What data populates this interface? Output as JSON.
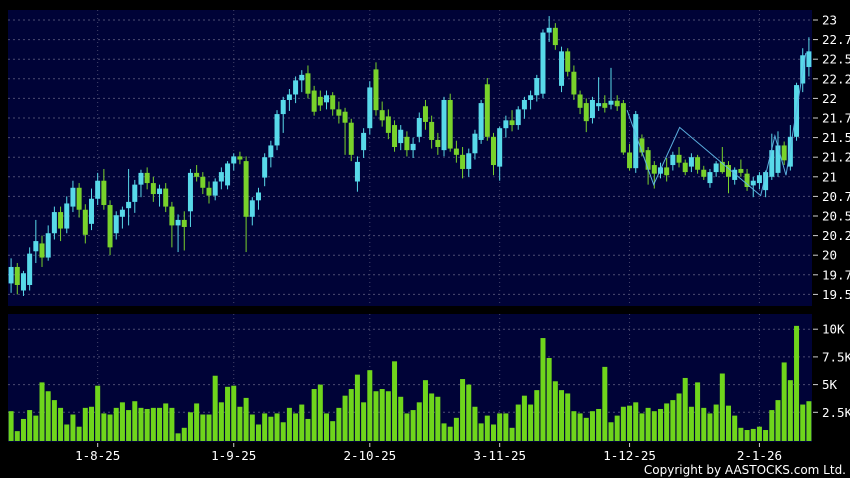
{
  "chart_data": {
    "type": "candlestick_with_volume",
    "title": "",
    "price_axis": {
      "min": 19.5,
      "max": 23,
      "tick_step": 0.25,
      "tick_labels": [
        "23",
        "22.75",
        "22.5",
        "22.25",
        "22",
        "21.75",
        "21.5",
        "21.25",
        "21",
        "20.75",
        "20.5",
        "20.25",
        "20",
        "19.75",
        "19.5"
      ]
    },
    "volume_axis": {
      "unit": "K",
      "tick_labels": [
        "10K",
        "7.5K",
        "5K",
        "2.5K"
      ],
      "tick_values_k": [
        10,
        7.5,
        5,
        2.5
      ]
    },
    "x_axis": {
      "tick_labels": [
        "1-8-25",
        "1-9-25",
        "2-10-25",
        "3-11-25",
        "1-12-25",
        "2-1-26"
      ],
      "tick_indices": [
        14,
        36,
        58,
        79,
        100,
        121
      ]
    },
    "candles_ohlc": [
      [
        19.64,
        19.96,
        19.52,
        19.85
      ],
      [
        19.85,
        19.9,
        19.5,
        19.62
      ],
      [
        19.55,
        19.8,
        19.48,
        19.77
      ],
      [
        19.62,
        20.1,
        19.55,
        20.02
      ],
      [
        20.05,
        20.45,
        19.9,
        20.18
      ],
      [
        20.15,
        20.25,
        19.85,
        19.97
      ],
      [
        19.97,
        20.38,
        19.93,
        20.28
      ],
      [
        20.28,
        20.62,
        20.2,
        20.55
      ],
      [
        20.55,
        20.62,
        20.18,
        20.34
      ],
      [
        20.34,
        20.75,
        20.28,
        20.66
      ],
      [
        20.62,
        20.95,
        20.55,
        20.86
      ],
      [
        20.86,
        20.92,
        20.48,
        20.58
      ],
      [
        20.58,
        20.65,
        20.15,
        20.26
      ],
      [
        20.4,
        20.85,
        20.32,
        20.72
      ],
      [
        20.72,
        21.05,
        20.64,
        20.95
      ],
      [
        20.95,
        21.1,
        20.58,
        20.64
      ],
      [
        20.64,
        20.7,
        20.0,
        20.1
      ],
      [
        20.28,
        20.56,
        20.2,
        20.51
      ],
      [
        20.49,
        20.62,
        20.34,
        20.58
      ],
      [
        20.6,
        21.1,
        20.38,
        20.68
      ],
      [
        20.68,
        20.96,
        20.54,
        20.9
      ],
      [
        20.9,
        21.09,
        20.74,
        21.05
      ],
      [
        21.05,
        21.12,
        20.84,
        20.92
      ],
      [
        20.92,
        21.0,
        20.68,
        20.78
      ],
      [
        20.78,
        20.9,
        20.62,
        20.85
      ],
      [
        20.85,
        20.92,
        20.55,
        20.62
      ],
      [
        20.62,
        20.68,
        20.1,
        20.38
      ],
      [
        20.38,
        20.52,
        20.04,
        20.45
      ],
      [
        20.45,
        20.56,
        20.06,
        20.36
      ],
      [
        20.56,
        21.1,
        20.36,
        21.05
      ],
      [
        21.05,
        21.15,
        20.94,
        21.0
      ],
      [
        21.0,
        21.06,
        20.78,
        20.86
      ],
      [
        20.86,
        20.94,
        20.66,
        20.76
      ],
      [
        20.76,
        20.98,
        20.7,
        20.94
      ],
      [
        20.94,
        21.12,
        20.84,
        21.06
      ],
      [
        20.89,
        21.2,
        20.84,
        21.17
      ],
      [
        21.17,
        21.3,
        21.08,
        21.26
      ],
      [
        21.26,
        21.32,
        21.16,
        21.22
      ],
      [
        21.2,
        21.26,
        20.04,
        20.49
      ],
      [
        20.49,
        20.74,
        20.38,
        20.7
      ],
      [
        20.7,
        20.86,
        20.58,
        20.8
      ],
      [
        20.99,
        21.3,
        20.88,
        21.25
      ],
      [
        21.25,
        21.46,
        21.12,
        21.4
      ],
      [
        21.4,
        21.85,
        21.34,
        21.8
      ],
      [
        21.8,
        22.02,
        21.56,
        21.98
      ],
      [
        21.98,
        22.12,
        21.84,
        22.05
      ],
      [
        22.05,
        22.28,
        21.94,
        22.23
      ],
      [
        22.23,
        22.36,
        22.08,
        22.3
      ],
      [
        22.32,
        22.42,
        22.0,
        22.06
      ],
      [
        22.1,
        22.16,
        21.78,
        21.83
      ],
      [
        22.02,
        22.1,
        21.84,
        21.91
      ],
      [
        21.95,
        22.1,
        21.86,
        22.04
      ],
      [
        22.04,
        22.08,
        21.78,
        21.86
      ],
      [
        21.86,
        21.96,
        21.68,
        21.78
      ],
      [
        21.83,
        21.88,
        21.28,
        21.69
      ],
      [
        21.69,
        21.74,
        21.2,
        21.28
      ],
      [
        20.94,
        21.26,
        20.81,
        21.19
      ],
      [
        21.34,
        21.62,
        21.24,
        21.56
      ],
      [
        21.62,
        22.22,
        21.54,
        22.14
      ],
      [
        22.37,
        22.46,
        21.78,
        21.85
      ],
      [
        21.85,
        21.96,
        21.64,
        21.72
      ],
      [
        21.77,
        21.86,
        21.48,
        21.56
      ],
      [
        21.66,
        21.72,
        21.32,
        21.38
      ],
      [
        21.43,
        21.66,
        21.34,
        21.6
      ],
      [
        21.51,
        21.58,
        21.26,
        21.34
      ],
      [
        21.34,
        21.5,
        21.24,
        21.42
      ],
      [
        21.51,
        21.82,
        21.44,
        21.75
      ],
      [
        21.9,
        21.98,
        21.6,
        21.7
      ],
      [
        21.7,
        21.78,
        21.36,
        21.47
      ],
      [
        21.47,
        21.56,
        21.28,
        21.38
      ],
      [
        21.34,
        22.02,
        21.26,
        21.98
      ],
      [
        21.98,
        22.06,
        21.32,
        21.36
      ],
      [
        21.36,
        21.46,
        21.18,
        21.28
      ],
      [
        21.28,
        21.38,
        20.98,
        21.1
      ],
      [
        21.1,
        21.36,
        21.0,
        21.3
      ],
      [
        21.3,
        21.6,
        21.22,
        21.55
      ],
      [
        21.47,
        21.98,
        21.42,
        21.94
      ],
      [
        22.18,
        22.26,
        21.46,
        21.51
      ],
      [
        21.51,
        21.56,
        21.02,
        21.15
      ],
      [
        21.13,
        21.64,
        20.95,
        21.62
      ],
      [
        21.62,
        21.78,
        21.5,
        21.72
      ],
      [
        21.72,
        21.85,
        21.58,
        21.66
      ],
      [
        21.66,
        21.9,
        21.6,
        21.86
      ],
      [
        21.86,
        22.02,
        21.74,
        21.98
      ],
      [
        21.98,
        22.1,
        21.86,
        22.04
      ],
      [
        22.04,
        22.3,
        21.96,
        22.26
      ],
      [
        22.06,
        22.88,
        22.0,
        22.84
      ],
      [
        22.84,
        23.05,
        22.72,
        22.9
      ],
      [
        22.9,
        22.96,
        22.62,
        22.68
      ],
      [
        22.16,
        22.66,
        22.08,
        22.6
      ],
      [
        22.6,
        22.64,
        22.28,
        22.34
      ],
      [
        22.34,
        22.42,
        21.98,
        22.05
      ],
      [
        22.05,
        22.1,
        21.8,
        21.88
      ],
      [
        21.94,
        22.0,
        21.57,
        21.71
      ],
      [
        21.75,
        22.02,
        21.68,
        21.98
      ],
      [
        21.9,
        22.27,
        21.84,
        21.94
      ],
      [
        21.94,
        22.04,
        21.82,
        21.88
      ],
      [
        21.92,
        22.39,
        21.86,
        21.97
      ],
      [
        21.97,
        22.04,
        21.84,
        21.9
      ],
      [
        21.94,
        21.98,
        21.28,
        21.31
      ],
      [
        21.31,
        21.42,
        21.08,
        21.11
      ],
      [
        21.11,
        21.84,
        21.05,
        21.8
      ],
      [
        21.49,
        21.54,
        21.26,
        21.31
      ],
      [
        21.34,
        21.38,
        20.9,
        21.09
      ],
      [
        21.15,
        21.2,
        20.85,
        21.04
      ],
      [
        21.04,
        21.18,
        20.98,
        21.12
      ],
      [
        21.12,
        21.24,
        20.94,
        21.02
      ],
      [
        21.15,
        21.32,
        21.08,
        21.28
      ],
      [
        21.28,
        21.38,
        21.12,
        21.18
      ],
      [
        21.18,
        21.22,
        21.02,
        21.06
      ],
      [
        21.13,
        21.3,
        21.06,
        21.25
      ],
      [
        21.25,
        21.28,
        21.04,
        21.09
      ],
      [
        21.09,
        21.14,
        20.96,
        21.0
      ],
      [
        20.92,
        21.1,
        20.86,
        21.06
      ],
      [
        21.06,
        21.2,
        21.0,
        21.17
      ],
      [
        21.19,
        21.38,
        21.04,
        21.06
      ],
      [
        21.15,
        21.2,
        20.79,
        21.0
      ],
      [
        20.96,
        21.12,
        20.9,
        21.09
      ],
      [
        21.1,
        21.22,
        21.0,
        21.05
      ],
      [
        21.04,
        21.1,
        20.82,
        20.87
      ],
      [
        20.89,
        21.0,
        20.74,
        20.95
      ],
      [
        20.92,
        21.06,
        20.84,
        21.02
      ],
      [
        20.83,
        21.08,
        20.74,
        21.06
      ],
      [
        21.0,
        21.55,
        20.96,
        21.34
      ],
      [
        21.05,
        21.58,
        21.0,
        21.4
      ],
      [
        21.4,
        21.45,
        21.15,
        21.21
      ],
      [
        21.13,
        21.66,
        21.08,
        21.51
      ],
      [
        21.51,
        22.2,
        21.46,
        22.17
      ],
      [
        22.19,
        22.64,
        22.08,
        22.55
      ],
      [
        22.4,
        22.78,
        22.28,
        22.6
      ]
    ],
    "volumes_k": [
      2.6,
      0.8,
      1.9,
      2.7,
      2.2,
      5.2,
      4.4,
      3.6,
      2.9,
      1.4,
      2.3,
      1.2,
      2.9,
      3.0,
      4.9,
      2.4,
      2.3,
      2.9,
      3.4,
      2.7,
      3.5,
      2.9,
      2.8,
      2.9,
      2.9,
      3.3,
      2.9,
      0.6,
      1.1,
      2.5,
      3.3,
      2.3,
      2.3,
      5.8,
      3.4,
      4.8,
      4.9,
      3.0,
      3.8,
      2.3,
      1.4,
      2.4,
      2.1,
      2.4,
      1.6,
      2.9,
      2.4,
      3.2,
      1.9,
      4.6,
      5.0,
      2.4,
      1.7,
      2.9,
      4.0,
      4.6,
      5.9,
      3.4,
      6.3,
      4.4,
      4.6,
      4.4,
      7.1,
      3.9,
      2.4,
      2.7,
      3.4,
      5.4,
      4.2,
      3.9,
      1.5,
      1.2,
      2.0,
      5.5,
      5.0,
      3.0,
      1.5,
      2.2,
      1.4,
      2.4,
      2.4,
      1.1,
      3.2,
      4.0,
      3.2,
      4.5,
      9.2,
      7.4,
      5.3,
      4.5,
      4.2,
      2.6,
      2.4,
      2.0,
      2.6,
      2.8,
      6.6,
      1.6,
      2.2,
      3.0,
      3.1,
      3.4,
      2.4,
      2.9,
      2.6,
      2.8,
      3.3,
      3.6,
      4.2,
      5.6,
      3.0,
      5.2,
      2.9,
      2.4,
      3.2,
      6.0,
      3.1,
      2.2,
      1.1,
      0.9,
      1.0,
      1.2,
      0.9,
      2.7,
      3.6,
      7.0,
      5.4,
      10.3,
      3.2,
      3.5
    ],
    "trend_line": {
      "points": [
        [
          99.6,
          21.85
        ],
        [
          103.9,
          20.9
        ],
        [
          108.1,
          21.63
        ],
        [
          121.2,
          20.76
        ],
        [
          123.5,
          21.52
        ],
        [
          125.3,
          21.02
        ],
        [
          128.5,
          22.58
        ]
      ]
    },
    "colors": {
      "background": "#000000",
      "panel": "#000337",
      "up": "#58d9e9",
      "down": "#79d22b",
      "volume": "#6fd51c",
      "grid": "#4c4c72",
      "month_grid": "#45456b",
      "axis_text": "#ffffff",
      "tick": "#cfcfcf",
      "trend": "#5fb7e6"
    }
  },
  "footer": {
    "copyright": "Copyright by AASTOCKS.com Ltd."
  }
}
